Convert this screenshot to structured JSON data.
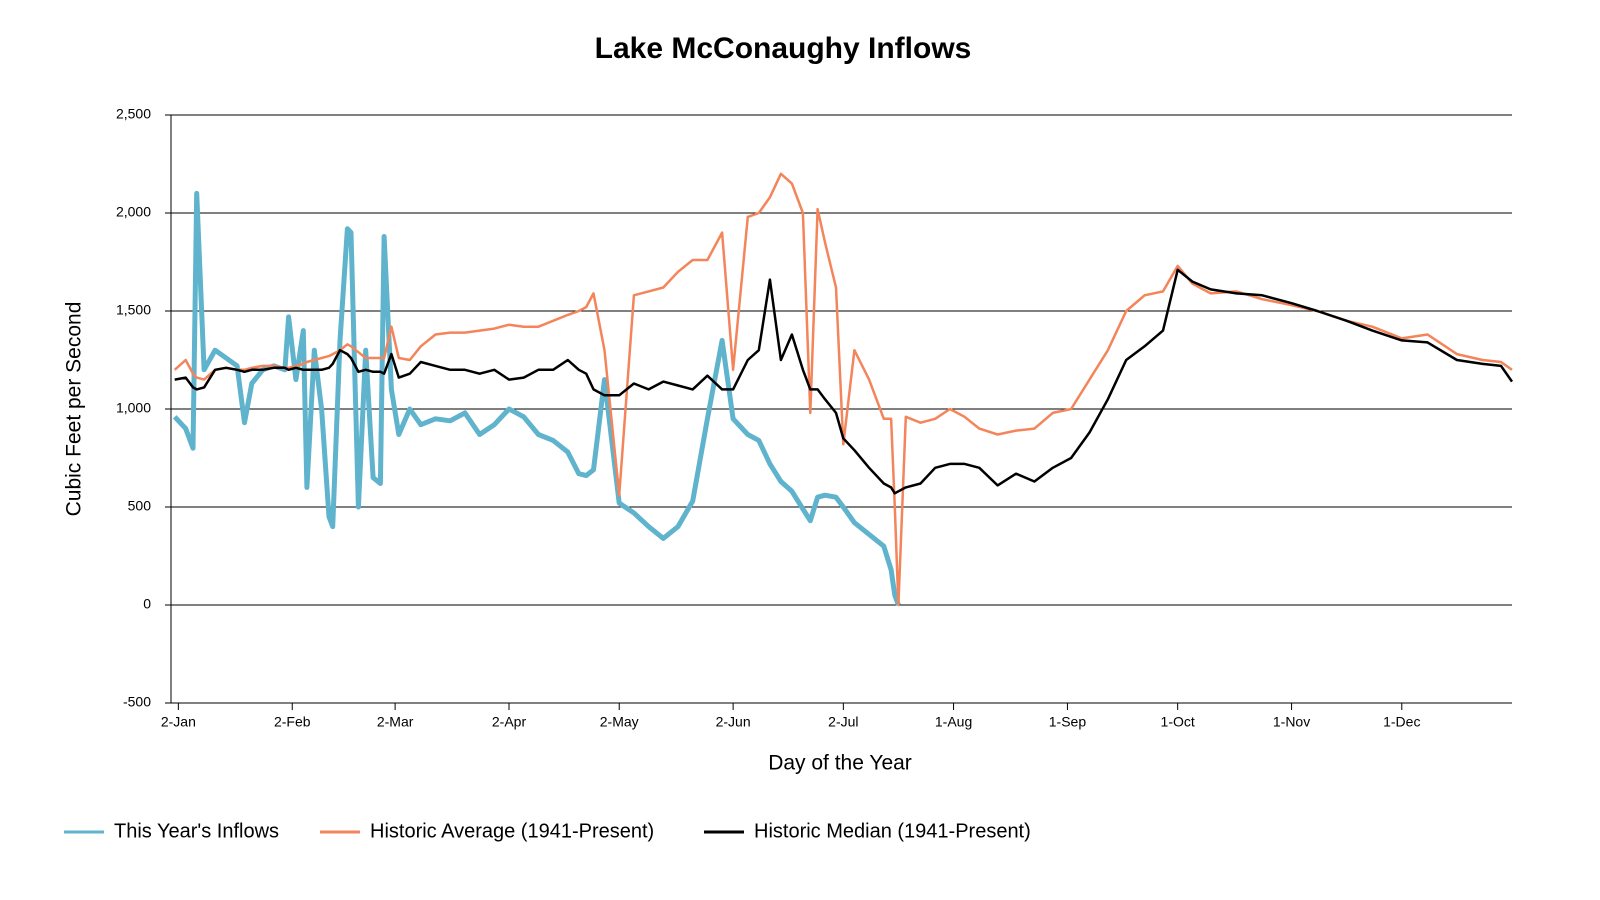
{
  "chart_data": {
    "type": "line",
    "title": "Lake McConaughy Inflows",
    "x_label": "Day of the Year",
    "y_label": "Cubic Feet per Second",
    "x": [
      1,
      4,
      6,
      7,
      9,
      12,
      15,
      18,
      20,
      22,
      25,
      28,
      31,
      32,
      34,
      36,
      37,
      39,
      41,
      43,
      44,
      46,
      48,
      49,
      51,
      53,
      55,
      57,
      58,
      60,
      62,
      65,
      68,
      72,
      76,
      80,
      84,
      88,
      92,
      96,
      100,
      104,
      108,
      111,
      113,
      115,
      118,
      122,
      126,
      130,
      134,
      138,
      142,
      146,
      150,
      153,
      157,
      160,
      163,
      166,
      169,
      172,
      174,
      176,
      178,
      181,
      183,
      186,
      190,
      194,
      196,
      197,
      198,
      200,
      204,
      208,
      212,
      216,
      220,
      225,
      230,
      235,
      240,
      245,
      250,
      255,
      260,
      265,
      270,
      274,
      278,
      283,
      290,
      297,
      305,
      312,
      320,
      327,
      335,
      342,
      350,
      357,
      362,
      365
    ],
    "xlim": [
      0,
      365
    ],
    "xticks": [
      {
        "value": 2,
        "label": "2-Jan"
      },
      {
        "value": 33,
        "label": "2-Feb"
      },
      {
        "value": 61,
        "label": "2-Mar"
      },
      {
        "value": 92,
        "label": "2-Apr"
      },
      {
        "value": 122,
        "label": "2-May"
      },
      {
        "value": 153,
        "label": "2-Jun"
      },
      {
        "value": 183,
        "label": "2-Jul"
      },
      {
        "value": 213,
        "label": "1-Aug"
      },
      {
        "value": 244,
        "label": "1-Sep"
      },
      {
        "value": 274,
        "label": "1-Oct"
      },
      {
        "value": 305,
        "label": "1-Nov"
      },
      {
        "value": 335,
        "label": "1-Dec"
      }
    ],
    "ylim": [
      -500,
      2500
    ],
    "yticks": [
      -500,
      0,
      500,
      {
        "value": 1000,
        "label": "1,000"
      },
      {
        "value": 1500,
        "label": "1,500"
      },
      {
        "value": 2000,
        "label": "2,000"
      },
      {
        "value": 2500,
        "label": "2,500"
      }
    ],
    "grid": true,
    "legend": "bottom",
    "series": [
      {
        "name": "This Year's Inflows",
        "color": "#5fb3cc",
        "values": [
          960,
          900,
          800,
          2100,
          1200,
          1300,
          1260,
          1220,
          930,
          1130,
          1200,
          1220,
          1200,
          1470,
          1150,
          1400,
          600,
          1300,
          1000,
          450,
          400,
          1350,
          1920,
          1900,
          500,
          1300,
          650,
          620,
          1880,
          1100,
          870,
          1000,
          920,
          950,
          940,
          980,
          870,
          920,
          1000,
          960,
          870,
          840,
          780,
          670,
          660,
          690,
          1150,
          520,
          470,
          400,
          340,
          400,
          530,
          950,
          1350,
          950,
          870,
          840,
          720,
          630,
          580,
          490,
          430,
          550,
          560,
          550,
          500,
          420,
          360,
          300,
          180,
          50,
          0,
          null,
          null,
          null,
          null,
          null,
          null,
          null,
          null,
          null,
          null,
          null,
          null,
          null,
          null,
          null,
          null,
          null,
          null,
          null,
          null,
          null,
          null,
          null,
          null,
          null,
          null,
          null,
          null,
          null,
          null,
          null
        ]
      },
      {
        "name": "Historic Average (1941-Present)",
        "color": "#f4845a",
        "values": [
          1200,
          1250,
          1180,
          1160,
          1150,
          1200,
          1210,
          1200,
          1200,
          1210,
          1220,
          1220,
          1210,
          1210,
          1220,
          1230,
          1240,
          1250,
          1260,
          1270,
          1280,
          1300,
          1330,
          1320,
          1290,
          1260,
          1260,
          1260,
          1260,
          1420,
          1260,
          1250,
          1320,
          1380,
          1390,
          1390,
          1400,
          1410,
          1430,
          1420,
          1420,
          1450,
          1480,
          1500,
          1520,
          1590,
          1300,
          560,
          1580,
          1600,
          1620,
          1700,
          1760,
          1760,
          1900,
          1200,
          1980,
          2000,
          2080,
          2200,
          2150,
          2000,
          980,
          2020,
          1850,
          1620,
          820,
          1300,
          1150,
          950,
          950,
          500,
          0,
          960,
          930,
          950,
          1000,
          960,
          900,
          870,
          890,
          900,
          980,
          1000,
          1150,
          1300,
          1500,
          1580,
          1600,
          1730,
          1640,
          1590,
          1600,
          1560,
          1530,
          1500,
          1450,
          1420,
          1360,
          1380,
          1280,
          1250,
          1240,
          1200
        ]
      },
      {
        "name": "Historic Median (1941-Present)",
        "color": "#000000",
        "values": [
          1150,
          1160,
          1110,
          1100,
          1110,
          1200,
          1210,
          1200,
          1190,
          1200,
          1200,
          1210,
          1210,
          1200,
          1210,
          1200,
          1200,
          1200,
          1200,
          1210,
          1230,
          1300,
          1280,
          1260,
          1190,
          1200,
          1190,
          1190,
          1180,
          1280,
          1160,
          1180,
          1240,
          1220,
          1200,
          1200,
          1180,
          1200,
          1150,
          1160,
          1200,
          1200,
          1250,
          1200,
          1180,
          1100,
          1070,
          1070,
          1130,
          1100,
          1140,
          1120,
          1100,
          1170,
          1100,
          1100,
          1250,
          1300,
          1660,
          1250,
          1380,
          1200,
          1100,
          1100,
          1050,
          980,
          850,
          790,
          700,
          620,
          600,
          570,
          580,
          600,
          620,
          700,
          720,
          720,
          700,
          610,
          670,
          630,
          700,
          750,
          880,
          1050,
          1250,
          1320,
          1400,
          1710,
          1650,
          1610,
          1590,
          1580,
          1540,
          1500,
          1450,
          1400,
          1350,
          1340,
          1250,
          1230,
          1220,
          1140
        ]
      }
    ]
  }
}
